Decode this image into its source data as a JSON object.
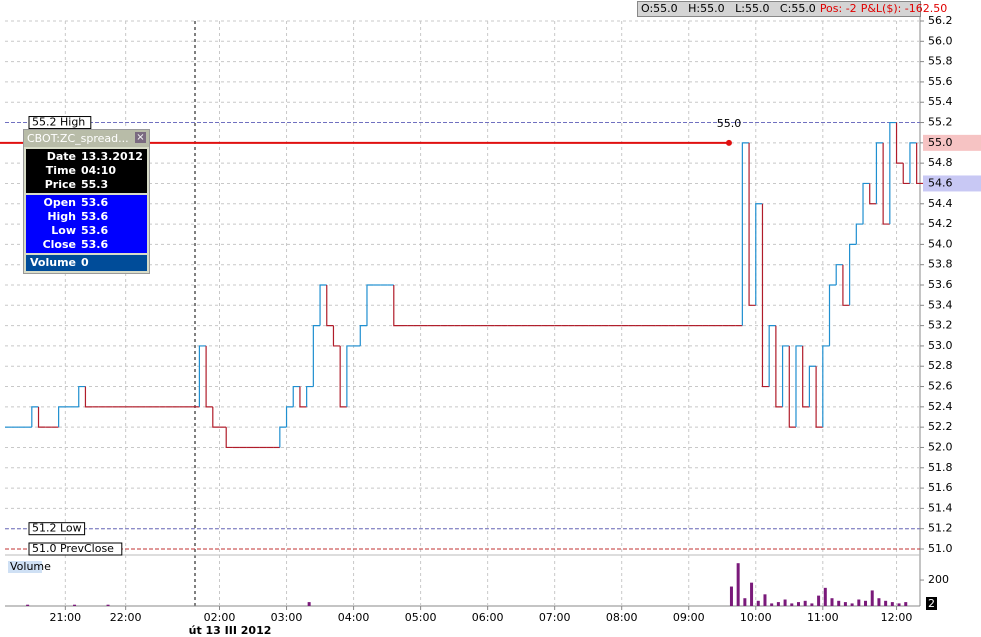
{
  "chart_data": {
    "type": "step",
    "top_bar": {
      "ohlc": "O:55.0   H:55.0   L:55.0   C:55.0",
      "position": "Pos: -2",
      "pnl": "P&L($): -162.50"
    },
    "date_label": "út 13 III 2012",
    "xlim": [
      0,
      136.5
    ],
    "xticks": [
      {
        "value": 9,
        "label": "21:00"
      },
      {
        "value": 18,
        "label": "22:00"
      },
      {
        "value": 32,
        "label": "02:00"
      },
      {
        "value": 42,
        "label": "03:00"
      },
      {
        "value": 52,
        "label": "04:00"
      },
      {
        "value": 62,
        "label": "05:00"
      },
      {
        "value": 72,
        "label": "06:00"
      },
      {
        "value": 82,
        "label": "07:00"
      },
      {
        "value": 92,
        "label": "08:00"
      },
      {
        "value": 102,
        "label": "09:00"
      },
      {
        "value": 112,
        "label": "10:00"
      },
      {
        "value": 122,
        "label": "11:00"
      },
      {
        "value": 133,
        "label": "12:00"
      }
    ],
    "ylim": [
      51.0,
      56.2
    ],
    "yticks": [
      {
        "value": 51.0,
        "label": "51.0"
      },
      51.2,
      51.4,
      51.6,
      51.8,
      {
        "value": 52.0,
        "label": "52.0"
      },
      52.2,
      52.4,
      52.6,
      52.8,
      {
        "value": 53.0,
        "label": "53.0"
      },
      53.2,
      53.4,
      53.6,
      53.8,
      {
        "value": 54.0,
        "label": "54.0"
      },
      54.2,
      54.4,
      54.6,
      54.8,
      {
        "value": 55.0,
        "label": "55.0"
      },
      55.2,
      55.4,
      55.6,
      55.8,
      {
        "value": 56.0,
        "label": "56.0"
      },
      56.2
    ],
    "grid": true,
    "price": {
      "up_color": "#1f8fd0",
      "down_color": "#b01c2a",
      "values": [
        52.2,
        52.2,
        52.2,
        52.2,
        52.4,
        52.2,
        52.2,
        52.2,
        52.4,
        52.4,
        52.4,
        52.6,
        52.4,
        52.4,
        52.4,
        52.4,
        52.4,
        52.4,
        52.4,
        52.4,
        52.4,
        52.4,
        52.4,
        52.4,
        52.4,
        52.4,
        52.4,
        52.4,
        52.4,
        53.0,
        52.4,
        52.2,
        52.2,
        52.0,
        52.0,
        52.0,
        52.0,
        52.0,
        52.0,
        52.0,
        52.0,
        52.2,
        52.4,
        52.6,
        52.4,
        52.6,
        53.2,
        53.6,
        53.2,
        53.0,
        52.4,
        53.0,
        53.0,
        53.2,
        53.6,
        53.6,
        53.6,
        53.6,
        53.2,
        53.2,
        53.2,
        53.2,
        53.2,
        53.2,
        53.2,
        53.2,
        53.2,
        53.2,
        53.2,
        53.2,
        53.2,
        53.2,
        53.2,
        53.2,
        53.2,
        53.2,
        53.2,
        53.2,
        53.2,
        53.2,
        53.2,
        53.2,
        53.2,
        53.2,
        53.2,
        53.2,
        53.2,
        53.2,
        53.2,
        53.2,
        53.2,
        53.2,
        53.2,
        53.2,
        53.2,
        53.2,
        53.2,
        53.2,
        53.2,
        53.2,
        53.2,
        53.2,
        53.2,
        53.2,
        53.2,
        53.2,
        53.2,
        53.2,
        53.2,
        53.2,
        55.0,
        53.4,
        54.4,
        52.6,
        53.2,
        52.4,
        53.0,
        52.2,
        53.0,
        52.4,
        52.8,
        52.2,
        53.0,
        53.6,
        53.8,
        53.4,
        54.0,
        54.2,
        54.6,
        54.4,
        55.0,
        54.2,
        55.2,
        54.8,
        54.6,
        55.0,
        54.6
      ]
    },
    "levels": [
      {
        "value": 55.2,
        "label": "55.2 High",
        "color": "#7070c0"
      },
      {
        "value": 51.2,
        "label": "51.2 Low",
        "color": "#7070c0"
      },
      {
        "value": 51.0,
        "label": "51.0 PrevClose",
        "color": "#c03030"
      }
    ],
    "entry": {
      "value": 55.0,
      "label": "55.0",
      "x": 108,
      "color": "#e01010"
    },
    "price_badges": [
      {
        "value": 55.0,
        "label": "55.0",
        "color": "#f6c3c3"
      },
      {
        "value": 54.6,
        "label": "54.6",
        "color": "#c8c8f4"
      }
    ],
    "volume": {
      "label": "Volume",
      "color": "#7a1a7a",
      "ylim": [
        0,
        370
      ],
      "yticks": [
        200
      ],
      "last_label": "2",
      "values": [
        0,
        0,
        0,
        10,
        0,
        0,
        0,
        0,
        0,
        0,
        10,
        0,
        0,
        0,
        0,
        10,
        0,
        0,
        0,
        0,
        0,
        0,
        0,
        0,
        0,
        0,
        0,
        0,
        0,
        0,
        0,
        0,
        0,
        0,
        0,
        0,
        0,
        0,
        0,
        0,
        0,
        0,
        0,
        0,
        0,
        30,
        0,
        0,
        0,
        0,
        0,
        0,
        0,
        0,
        0,
        0,
        0,
        0,
        0,
        0,
        0,
        0,
        0,
        0,
        0,
        0,
        0,
        0,
        0,
        0,
        0,
        0,
        0,
        0,
        0,
        0,
        0,
        0,
        0,
        0,
        0,
        0,
        0,
        0,
        0,
        0,
        0,
        0,
        0,
        0,
        0,
        0,
        0,
        0,
        0,
        0,
        0,
        0,
        0,
        0,
        0,
        0,
        0,
        0,
        0,
        0,
        0,
        0,
        150,
        330,
        60,
        180,
        40,
        90,
        20,
        30,
        50,
        20,
        30,
        40,
        20,
        80,
        140,
        60,
        40,
        30,
        20,
        50,
        40,
        120,
        60,
        40,
        30,
        20,
        30
      ]
    },
    "info_box": {
      "title": "CBOT:ZC_spread...",
      "close": "×",
      "sections": [
        {
          "color": "#000000",
          "rows": [
            [
              "Date",
              "13.3.2012"
            ],
            [
              "Time",
              "04:10"
            ],
            [
              "Price",
              "55.3"
            ]
          ]
        },
        {
          "color": "#0000ff",
          "rows": [
            [
              "Open",
              "53.6"
            ],
            [
              "High",
              "53.6"
            ],
            [
              "Low",
              "53.6"
            ],
            [
              "Close",
              "53.6"
            ]
          ]
        },
        {
          "color": "#004c99",
          "rows": [
            [
              "Volume",
              "0"
            ]
          ]
        }
      ]
    }
  }
}
